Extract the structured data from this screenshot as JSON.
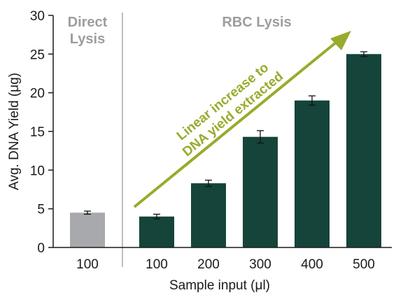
{
  "chart_data": {
    "type": "bar",
    "xlabel": "Sample input (μl)",
    "ylabel": "Avg. DNA Yield (μg)",
    "ylim": [
      0,
      30
    ],
    "yticks": [
      0,
      5,
      10,
      15,
      20,
      25,
      30
    ],
    "grid": false,
    "groups": [
      {
        "name": "Direct\nLysis",
        "label_lines": [
          "Direct",
          "Lysis"
        ],
        "color": "#a7a9ac"
      },
      {
        "name": "RBC Lysis",
        "label_lines": [
          "RBC Lysis"
        ],
        "color": "#15443a"
      }
    ],
    "categories": [
      "100",
      "100",
      "200",
      "300",
      "400",
      "500"
    ],
    "bars": [
      {
        "category": "100",
        "group": "Direct\nLysis",
        "value": 4.5,
        "error": 0.2
      },
      {
        "category": "100",
        "group": "RBC Lysis",
        "value": 4.0,
        "error": 0.3
      },
      {
        "category": "200",
        "group": "RBC Lysis",
        "value": 8.3,
        "error": 0.4
      },
      {
        "category": "300",
        "group": "RBC Lysis",
        "value": 14.3,
        "error": 0.8
      },
      {
        "category": "400",
        "group": "RBC Lysis",
        "value": 19.0,
        "error": 0.6
      },
      {
        "category": "500",
        "group": "RBC Lysis",
        "value": 25.0,
        "error": 0.3
      }
    ],
    "annotation": {
      "lines": [
        "Linear increase to",
        "DNA yield extracted"
      ],
      "color": "#9aaa2c"
    }
  }
}
